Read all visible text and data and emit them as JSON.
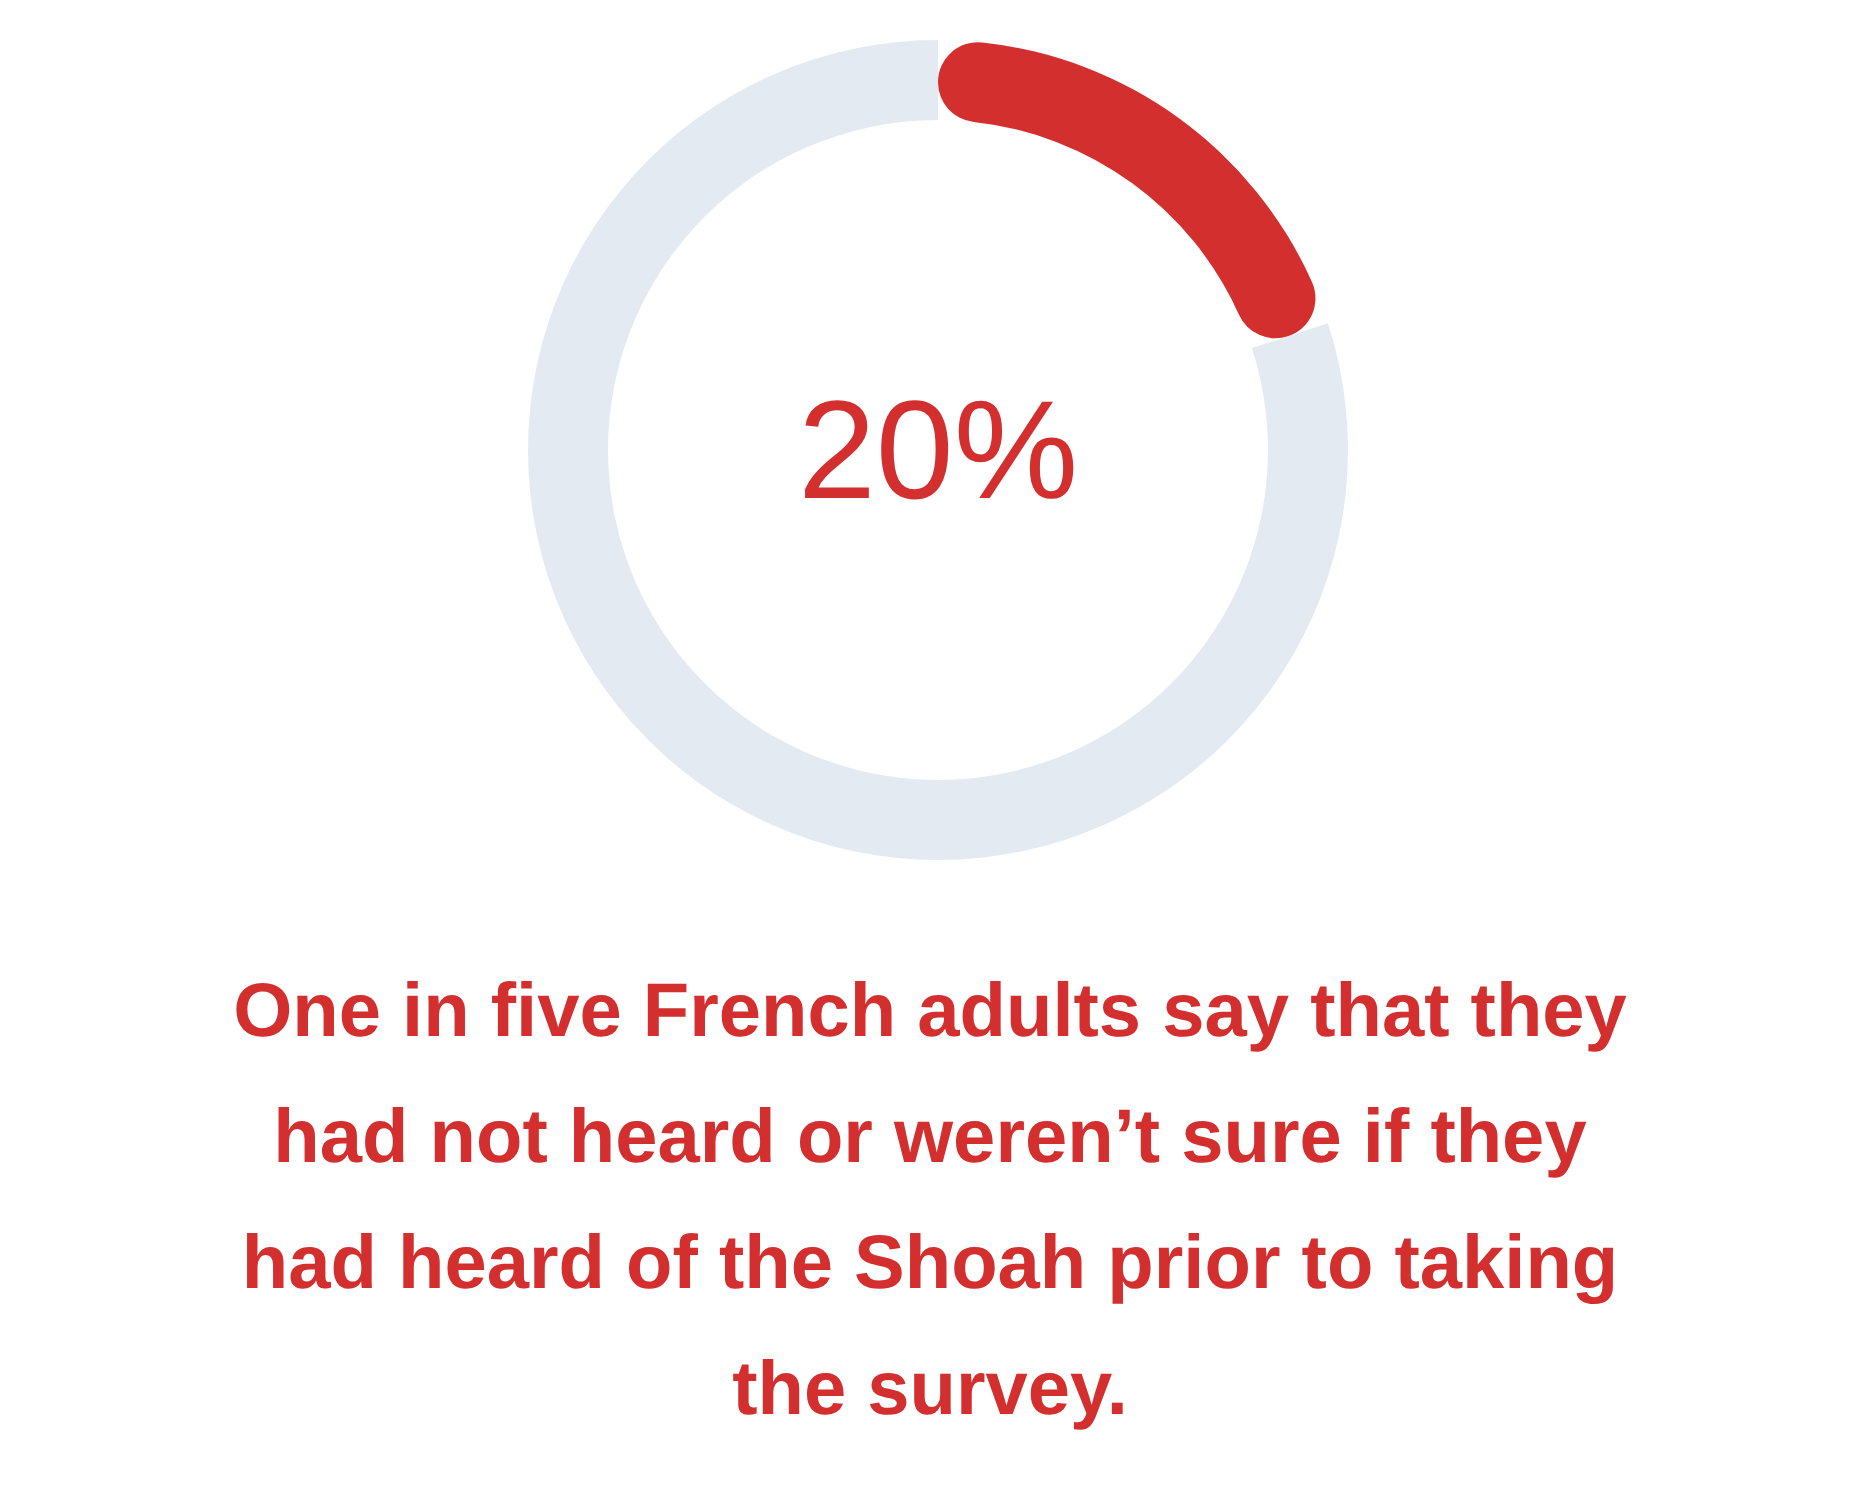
{
  "chart_data": {
    "type": "donut",
    "title": "One in five French adults say that they had not heard or weren’t sure if they had heard of the Shoah prior to taking the survey.",
    "categories": [
      null,
      null
    ],
    "values": [
      20,
      80
    ],
    "colors": [
      "#d32f2f",
      "#e4eaf2"
    ],
    "value_labels": [
      "20%",
      null
    ]
  }
}
